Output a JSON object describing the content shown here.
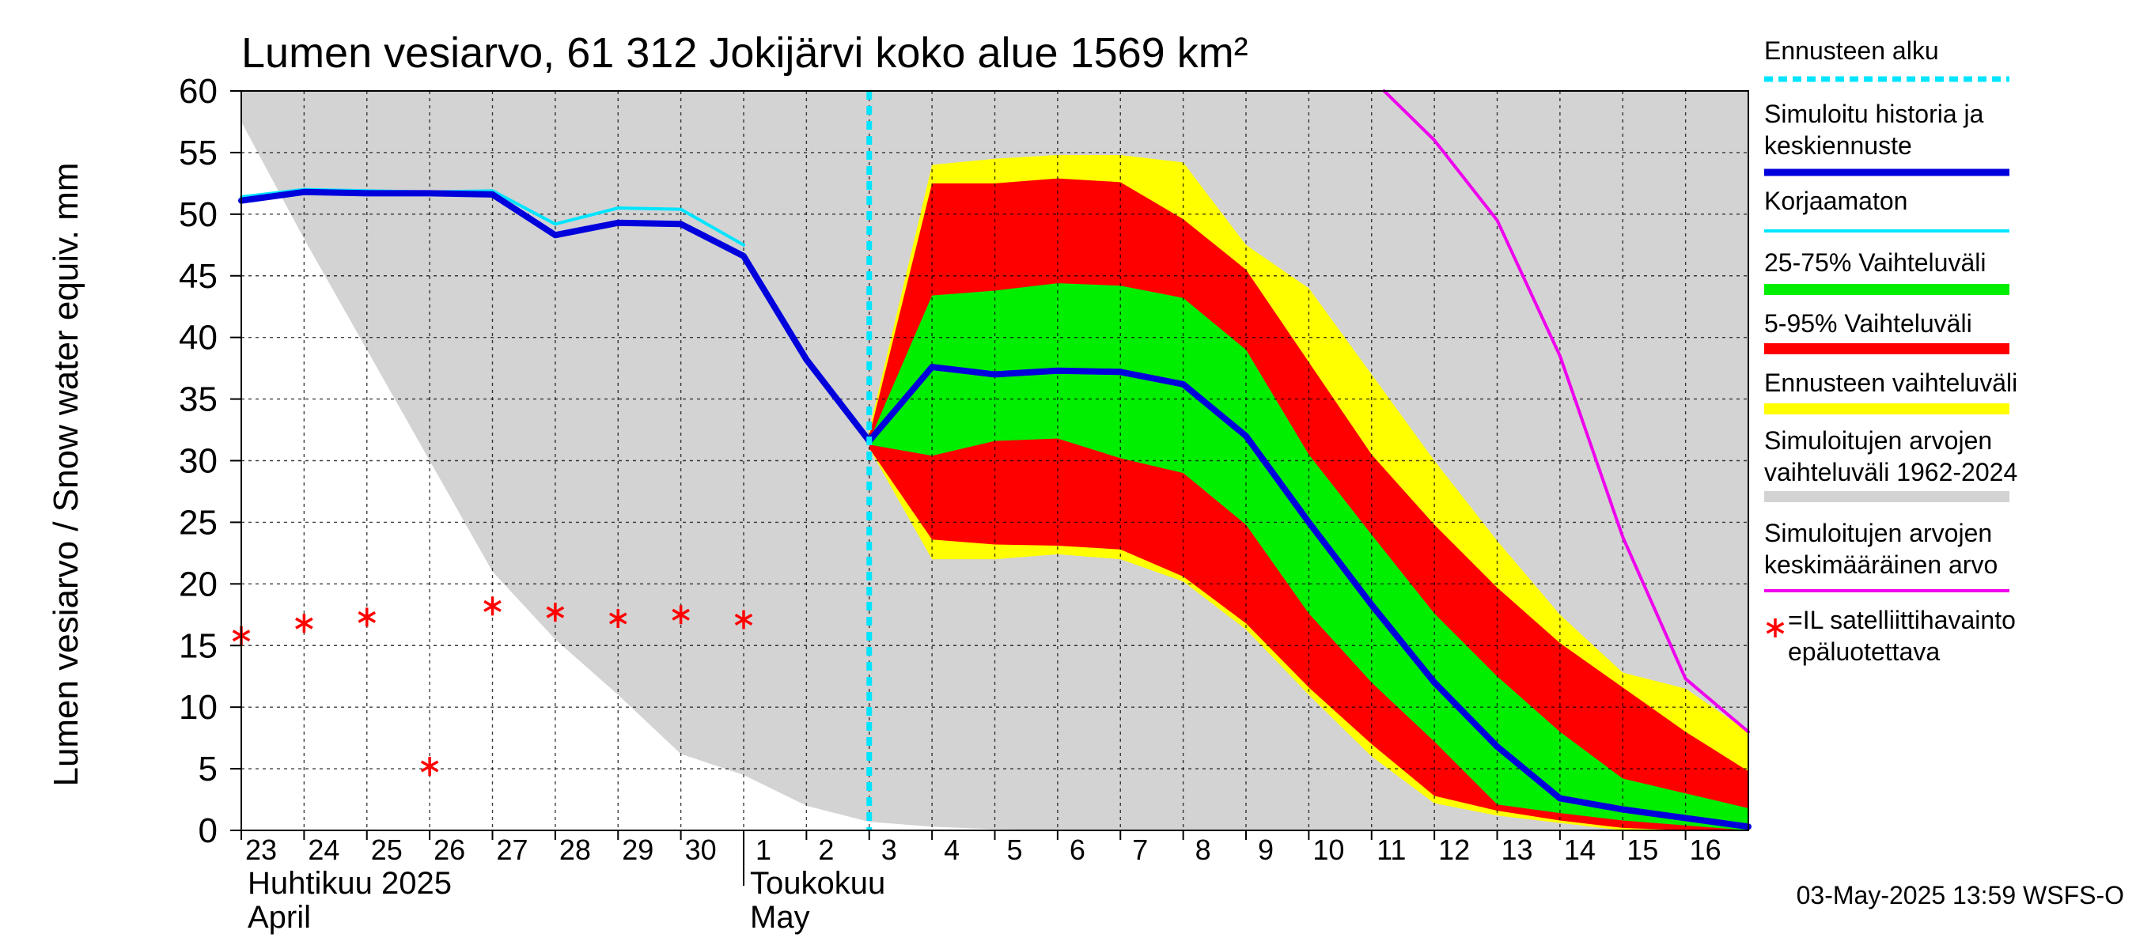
{
  "chart_data": {
    "type": "area",
    "title": "Lumen vesiarvo, 61 312 Jokijärvi koko alue 1569 km²",
    "ylabel": "Lumen vesiarvo / Snow water equiv.    mm",
    "ylim": [
      0,
      60
    ],
    "yticks": [
      0,
      5,
      10,
      15,
      20,
      25,
      30,
      35,
      40,
      45,
      50,
      55,
      60
    ],
    "x_unit": "day index (0 = 23 April 2025)",
    "xlim": [
      0,
      24
    ],
    "day_labels": [
      "23",
      "24",
      "25",
      "26",
      "27",
      "28",
      "29",
      "30",
      "1",
      "2",
      "3",
      "4",
      "5",
      "6",
      "7",
      "8",
      "9",
      "10",
      "11",
      "12",
      "13",
      "14",
      "15",
      "16"
    ],
    "months": [
      {
        "fi": "Huhtikuu  2025",
        "en": "April",
        "start_day": 0
      },
      {
        "fi": "Toukokuu",
        "en": "May",
        "start_day": 8
      }
    ],
    "forecast_start_day": 10,
    "series": [
      {
        "name": "Simuloitujen arvojen vaihteluväli 1962-2024",
        "color": "#d3d3d3",
        "kind": "band",
        "x": [
          0,
          1,
          2,
          3,
          4,
          5,
          6,
          7,
          8,
          9,
          10,
          11,
          12,
          13,
          14,
          15,
          16,
          17,
          18,
          19,
          20,
          21,
          22,
          23,
          24
        ],
        "upper": [
          60,
          60,
          60,
          60,
          60,
          60,
          60,
          60,
          60,
          60,
          60,
          60,
          60,
          60,
          60,
          60,
          60,
          60,
          60,
          60,
          60,
          60,
          60,
          60,
          60
        ],
        "lower": [
          57.5,
          48,
          39,
          30,
          21,
          15.5,
          11,
          6.2,
          4.5,
          2,
          0.7,
          0.3,
          0.1,
          0,
          0,
          0,
          0,
          0,
          0,
          0,
          0,
          0,
          0,
          0,
          0
        ]
      },
      {
        "name": "Ennusteen vaihteluväli",
        "color": "#ffff00",
        "kind": "band",
        "x": [
          10,
          11,
          12,
          13,
          14,
          15,
          16,
          17,
          18,
          19,
          20,
          21,
          22,
          23,
          24
        ],
        "upper": [
          32.5,
          54,
          54.5,
          54.8,
          54.8,
          54.2,
          47.5,
          44,
          37,
          30,
          23.5,
          17.5,
          12.8,
          11.5,
          8
        ],
        "lower": [
          31,
          22,
          22,
          22.4,
          22,
          20.2,
          16.3,
          11,
          6,
          2.2,
          1.2,
          0.6,
          0,
          0,
          0
        ]
      },
      {
        "name": "5-95% Vaihteluväli",
        "color": "#ff0000",
        "kind": "band",
        "x": [
          10,
          11,
          12,
          13,
          14,
          15,
          16,
          17,
          18,
          19,
          20,
          21,
          22,
          23,
          24
        ],
        "upper": [
          32,
          52.5,
          52.5,
          52.9,
          52.6,
          49.6,
          45.5,
          38,
          30.5,
          24.8,
          19.7,
          15.2,
          11.6,
          8,
          4.8
        ],
        "lower": [
          31,
          23.6,
          23.2,
          23.1,
          22.8,
          20.6,
          16.8,
          11.6,
          7,
          2.8,
          1.6,
          0.8,
          0.2,
          0,
          0
        ]
      },
      {
        "name": "25-75% Vaihteluväli",
        "color": "#00ee00",
        "kind": "band",
        "x": [
          10,
          11,
          12,
          13,
          14,
          15,
          16,
          17,
          18,
          19,
          20,
          21,
          22,
          23,
          24
        ],
        "upper": [
          31.6,
          43.4,
          43.8,
          44.4,
          44.2,
          43.2,
          39,
          30.5,
          24,
          17.6,
          12.5,
          8,
          4.2,
          3,
          1.8
        ],
        "lower": [
          31.3,
          30.4,
          31.6,
          31.8,
          30.2,
          29,
          24.8,
          17.6,
          12,
          7.2,
          2.1,
          1.4,
          0.8,
          0.4,
          0
        ]
      },
      {
        "name": "Simuloitujen arvojen keskimääräinen arvo",
        "color": "#ee00ee",
        "kind": "line",
        "x": [
          18.2,
          19,
          20,
          21,
          22,
          23,
          24
        ],
        "values": [
          60,
          56,
          49.5,
          38.5,
          23.8,
          12.3,
          8
        ]
      },
      {
        "name": "Korjaamaton",
        "color": "#00e5ff",
        "kind": "line",
        "x": [
          0,
          1,
          2,
          3,
          4,
          5,
          6,
          7,
          8
        ],
        "values": [
          51.4,
          52,
          51.9,
          51.8,
          51.9,
          49.2,
          50.5,
          50.4,
          47.5
        ]
      },
      {
        "name": "Simuloitu historia ja keskiennuste",
        "color": "#0000dd",
        "kind": "line",
        "x": [
          0,
          1,
          2,
          3,
          4,
          5,
          6,
          7,
          8,
          9,
          10,
          11,
          12,
          13,
          14,
          15,
          16,
          17,
          18,
          19,
          20,
          21,
          22,
          23,
          24
        ],
        "values": [
          51.1,
          51.8,
          51.7,
          51.7,
          51.6,
          48.3,
          49.3,
          49.2,
          46.6,
          38.2,
          31.6,
          37.6,
          37,
          37.3,
          37.2,
          36.2,
          32,
          25,
          18.3,
          12,
          6.8,
          2.6,
          1.7,
          1,
          0.3
        ]
      },
      {
        "name": "=IL satelliittihavainto epäluotettava",
        "color": "#ff0000",
        "kind": "markers",
        "x": [
          0,
          1,
          2,
          3,
          4,
          5,
          6,
          7,
          8
        ],
        "values": [
          15.8,
          16.8,
          17.3,
          5.2,
          18.2,
          17.7,
          17.2,
          17.5,
          17.1
        ]
      }
    ]
  },
  "legend": {
    "items": [
      {
        "label": "Ennusteen alku",
        "color": "#00e5ff",
        "style": "dotted"
      },
      {
        "label": "Simuloitu historia ja\nkeskiennuste",
        "color": "#0000dd",
        "style": "thick"
      },
      {
        "label": "Korjaamaton",
        "color": "#00e5ff",
        "style": "line"
      },
      {
        "label": "25-75% Vaihteluväli",
        "color": "#00ee00",
        "style": "band"
      },
      {
        "label": "5-95% Vaihteluväli",
        "color": "#ff0000",
        "style": "band"
      },
      {
        "label": "Ennusteen vaihteluväli",
        "color": "#ffff00",
        "style": "band"
      },
      {
        "label": "Simuloitujen arvojen\nvaihteluväli 1962-2024",
        "color": "#d3d3d3",
        "style": "band"
      },
      {
        "label": "Simuloitujen arvojen\nkeskimääräinen arvo",
        "color": "#ee00ee",
        "style": "line"
      },
      {
        "label": "=IL satelliittihavainto\nepäluotettava",
        "color": "#ff0000",
        "style": "marker"
      }
    ]
  },
  "timestamp": "03-May-2025 13:59 WSFS-O"
}
